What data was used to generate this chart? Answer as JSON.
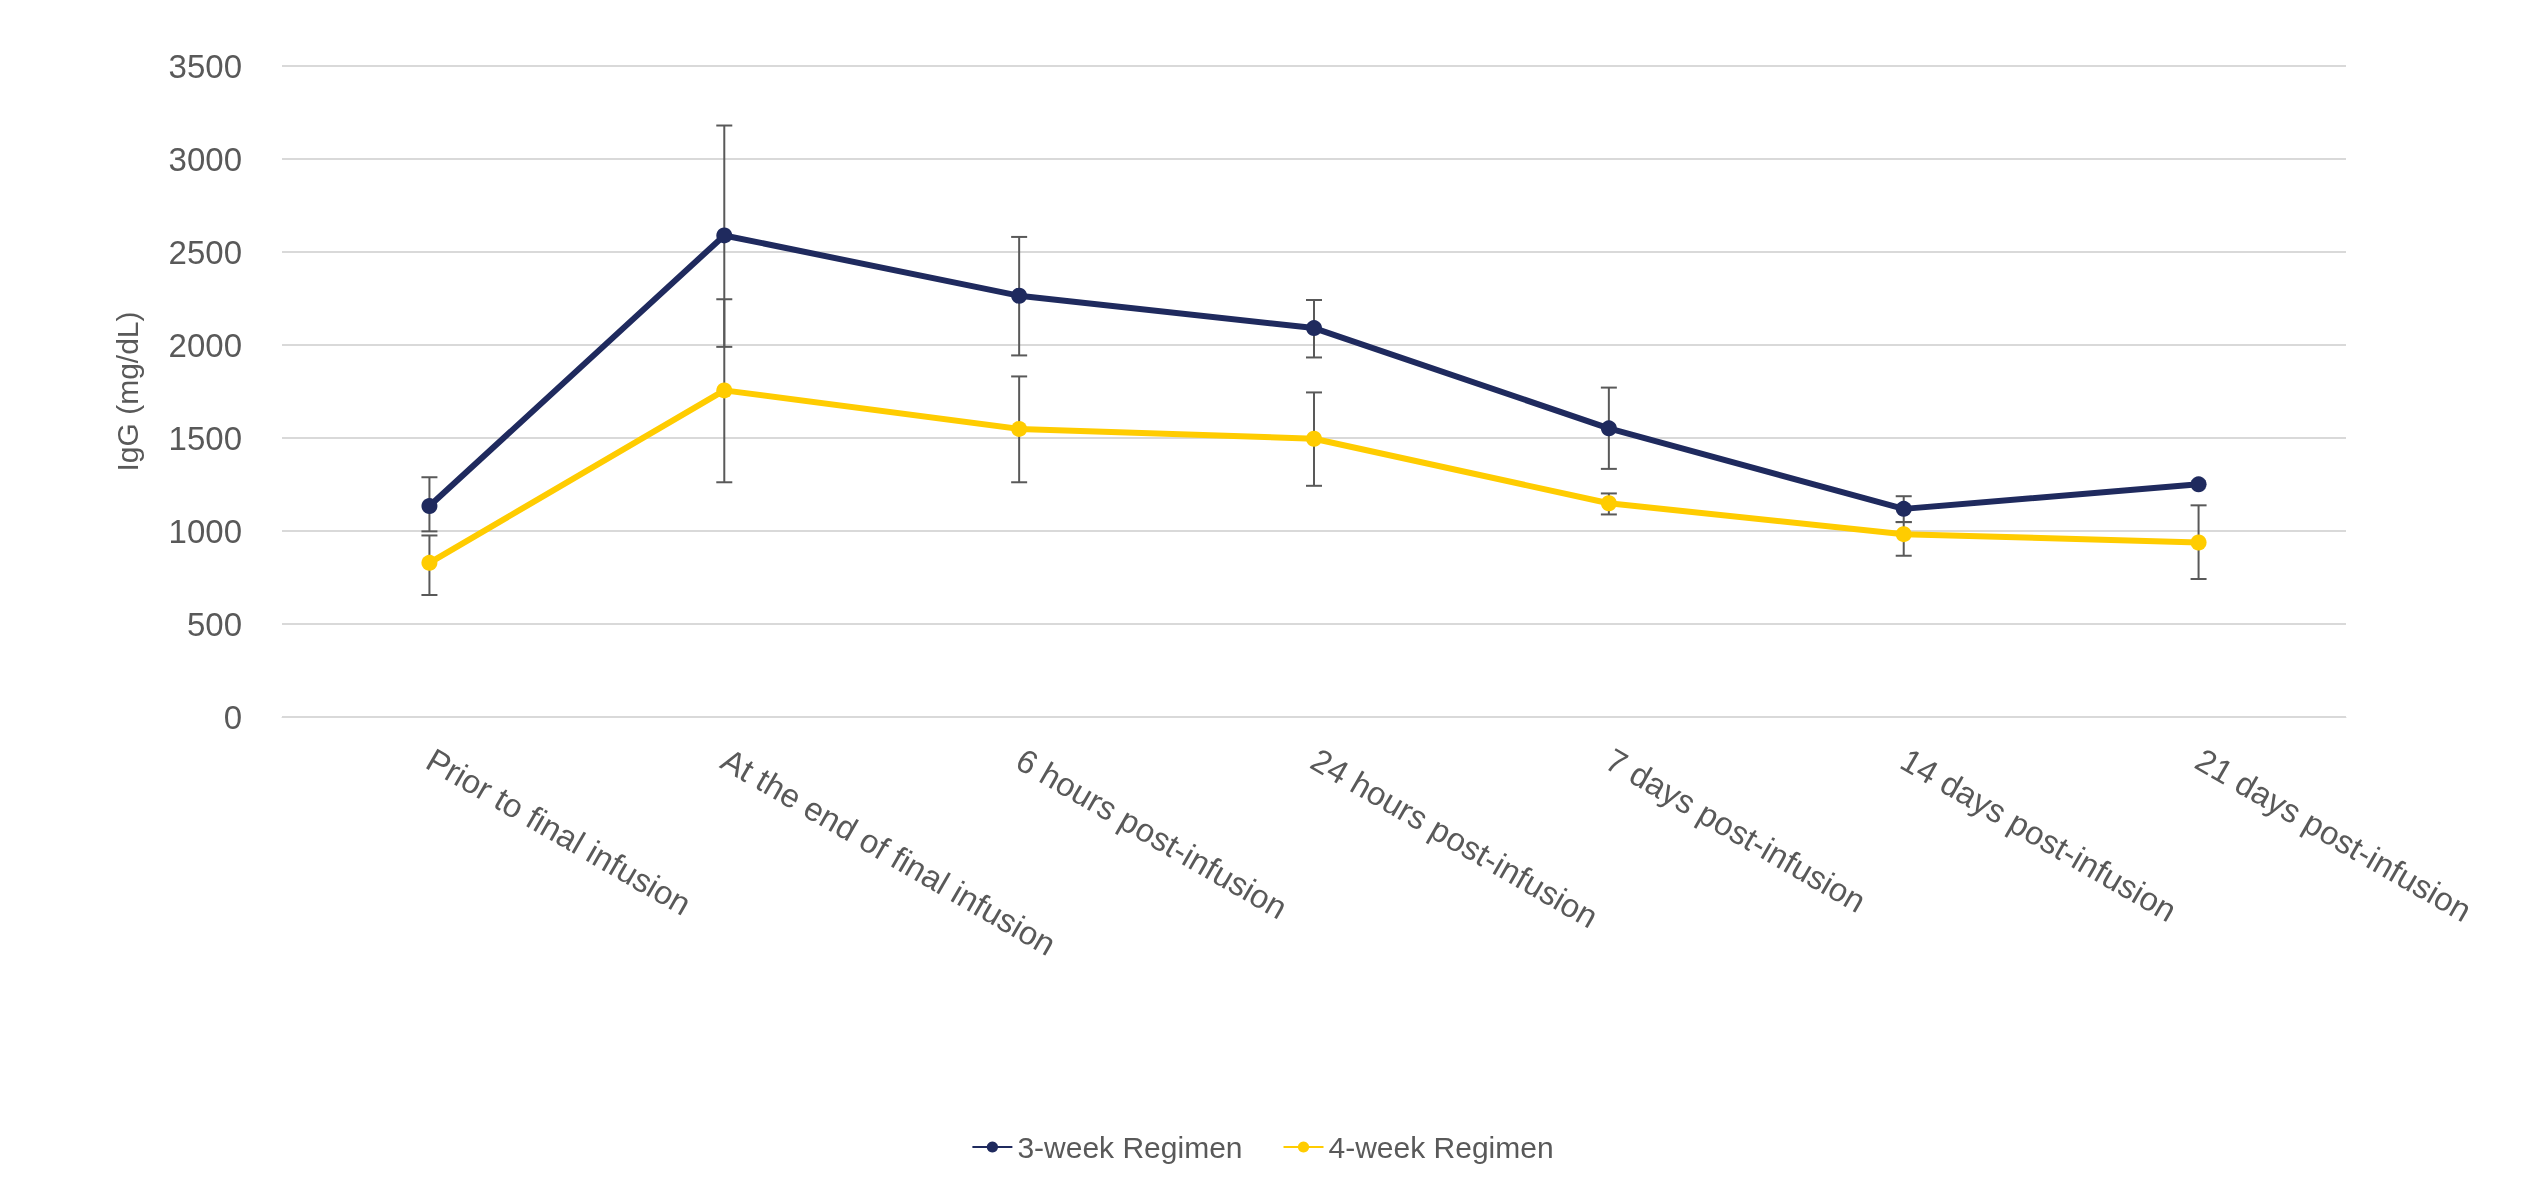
{
  "chart_data": {
    "type": "line",
    "ylabel": "IgG (mg/dL)",
    "categories": [
      "Prior to final infusion",
      "At the end of final infusion",
      "6 hours post-infusion",
      "24 hours post-infusion",
      "7 days post-infusion",
      "14 days post-infusion",
      "21 days post-infusion"
    ],
    "series": [
      {
        "name": "3-week Regimen",
        "color": "#1f2a5e",
        "values": [
          1134,
          2589,
          2265,
          2091,
          1552,
          1119,
          1251
        ],
        "errors": [
          [
            998,
            1289
          ],
          [
            1990,
            3180
          ],
          [
            1944,
            2581
          ],
          [
            1933,
            2242
          ],
          [
            1334,
            1771
          ],
          [
            1048,
            1187
          ],
          null
        ]
      },
      {
        "name": "4-week Regimen",
        "color": "#ffcc00",
        "values": [
          829,
          1756,
          1549,
          1496,
          1149,
          983,
          938
        ],
        "errors": [
          [
            656,
            976
          ],
          [
            1262,
            2246
          ],
          [
            1262,
            1831
          ],
          [
            1243,
            1745
          ],
          [
            1089,
            1202
          ],
          [
            867,
            1048
          ],
          [
            742,
            1138
          ]
        ]
      }
    ],
    "ylim": [
      0,
      3500
    ],
    "yticks": [
      0,
      500,
      1000,
      1500,
      2000,
      2500,
      3000,
      3500
    ],
    "grid": "y",
    "legend": "bottom",
    "marker": "circle",
    "line_style": "solid"
  }
}
